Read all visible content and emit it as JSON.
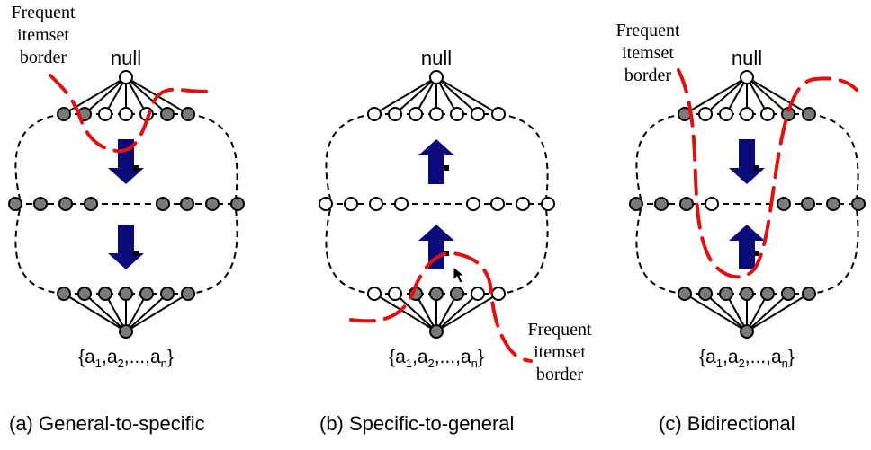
{
  "panels": [
    {
      "id": "a",
      "caption": "(a) General-to-specific",
      "top_label": "null",
      "bottom_label": {
        "open": "{a",
        "s1": "1",
        "t1": ",a",
        "s2": "2",
        "t2": ",...,a",
        "s3": "n",
        "close": "}"
      },
      "border_note": [
        "Frequent",
        "itemset",
        "border"
      ],
      "arrows": [
        "down",
        "down"
      ],
      "nodes": {
        "top": [
          "frequent",
          "frequent",
          "infrequent",
          "infrequent",
          "infrequent",
          "frequent",
          "frequent"
        ],
        "middle_left": [
          "frequent",
          "frequent",
          "frequent",
          "frequent"
        ],
        "middle_right": [
          "frequent",
          "frequent",
          "frequent",
          "frequent"
        ],
        "bottom": [
          "frequent",
          "frequent",
          "frequent",
          "frequent",
          "frequent",
          "frequent",
          "frequent"
        ],
        "root": "infrequent",
        "leaf": "frequent"
      }
    },
    {
      "id": "b",
      "caption": "(b) Specific-to-general",
      "top_label": "null",
      "bottom_label": {
        "open": "{a",
        "s1": "1",
        "t1": ",a",
        "s2": "2",
        "t2": ",...,a",
        "s3": "n",
        "close": "}"
      },
      "border_note": [
        "Frequent",
        "itemset",
        "border"
      ],
      "arrows": [
        "up",
        "up"
      ],
      "nodes": {
        "top": [
          "infrequent",
          "infrequent",
          "infrequent",
          "infrequent",
          "infrequent",
          "infrequent",
          "infrequent"
        ],
        "middle_left": [
          "infrequent",
          "infrequent",
          "infrequent",
          "infrequent"
        ],
        "middle_right": [
          "infrequent",
          "infrequent",
          "infrequent",
          "infrequent"
        ],
        "bottom": [
          "infrequent",
          "infrequent",
          "frequent",
          "frequent",
          "frequent",
          "infrequent",
          "infrequent"
        ],
        "root": "infrequent",
        "leaf": "frequent"
      }
    },
    {
      "id": "c",
      "caption": "(c) Bidirectional",
      "top_label": "null",
      "bottom_label": {
        "open": "{a",
        "s1": "1",
        "t1": ",a",
        "s2": "2",
        "t2": ",...,a",
        "s3": "n",
        "close": "}"
      },
      "border_note": [
        "Frequent",
        "itemset",
        "border"
      ],
      "arrows": [
        "down",
        "up"
      ],
      "nodes": {
        "top": [
          "frequent",
          "infrequent",
          "infrequent",
          "infrequent",
          "infrequent",
          "frequent",
          "frequent"
        ],
        "middle_left": [
          "frequent",
          "frequent",
          "frequent",
          "infrequent"
        ],
        "middle_right": [
          "frequent",
          "frequent",
          "frequent",
          "frequent"
        ],
        "bottom": [
          "frequent",
          "frequent",
          "frequent",
          "frequent",
          "frequent",
          "frequent",
          "frequent"
        ],
        "root": "infrequent",
        "leaf": "frequent"
      }
    }
  ],
  "colors": {
    "frequent_node": "#7a7a7a",
    "infrequent_node": "#ffffff",
    "node_stroke": "#000000",
    "arrow": "#0a0a78",
    "border_line": "#e01010",
    "lattice_outline": "#000000"
  }
}
